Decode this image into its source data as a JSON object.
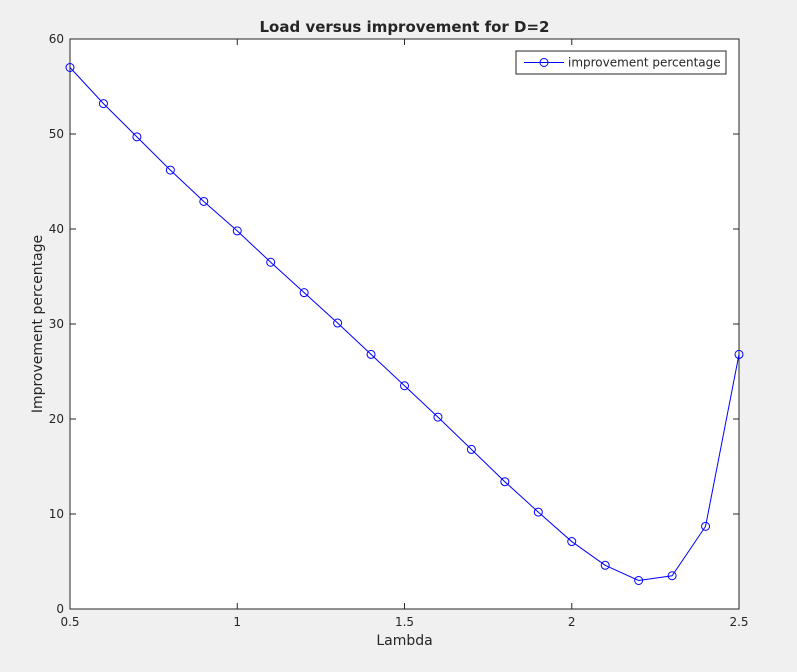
{
  "chart_data": {
    "type": "line",
    "title": "Load versus improvement for D=2",
    "xlabel": "Lambda",
    "ylabel": "Improvement percentage",
    "xlim": [
      0.5,
      2.5
    ],
    "ylim": [
      0,
      60
    ],
    "xticks": [
      "0.5",
      "1",
      "1.5",
      "2",
      "2.5"
    ],
    "yticks": [
      "0",
      "10",
      "20",
      "30",
      "40",
      "50",
      "60"
    ],
    "grid": false,
    "legend": "top-right",
    "series": [
      {
        "name": "improvement percentage",
        "color": "#0000ff",
        "marker": "circle",
        "x": [
          0.5,
          0.6,
          0.7,
          0.8,
          0.9,
          1.0,
          1.1,
          1.2,
          1.3,
          1.4,
          1.5,
          1.6,
          1.7,
          1.8,
          1.9,
          2.0,
          2.1,
          2.2,
          2.3,
          2.4,
          2.5
        ],
        "y": [
          57.0,
          53.2,
          49.7,
          46.2,
          42.9,
          39.8,
          36.5,
          33.3,
          30.1,
          26.8,
          23.5,
          20.2,
          16.8,
          13.4,
          10.2,
          7.1,
          4.6,
          3.0,
          3.5,
          8.7,
          26.8
        ]
      }
    ]
  }
}
